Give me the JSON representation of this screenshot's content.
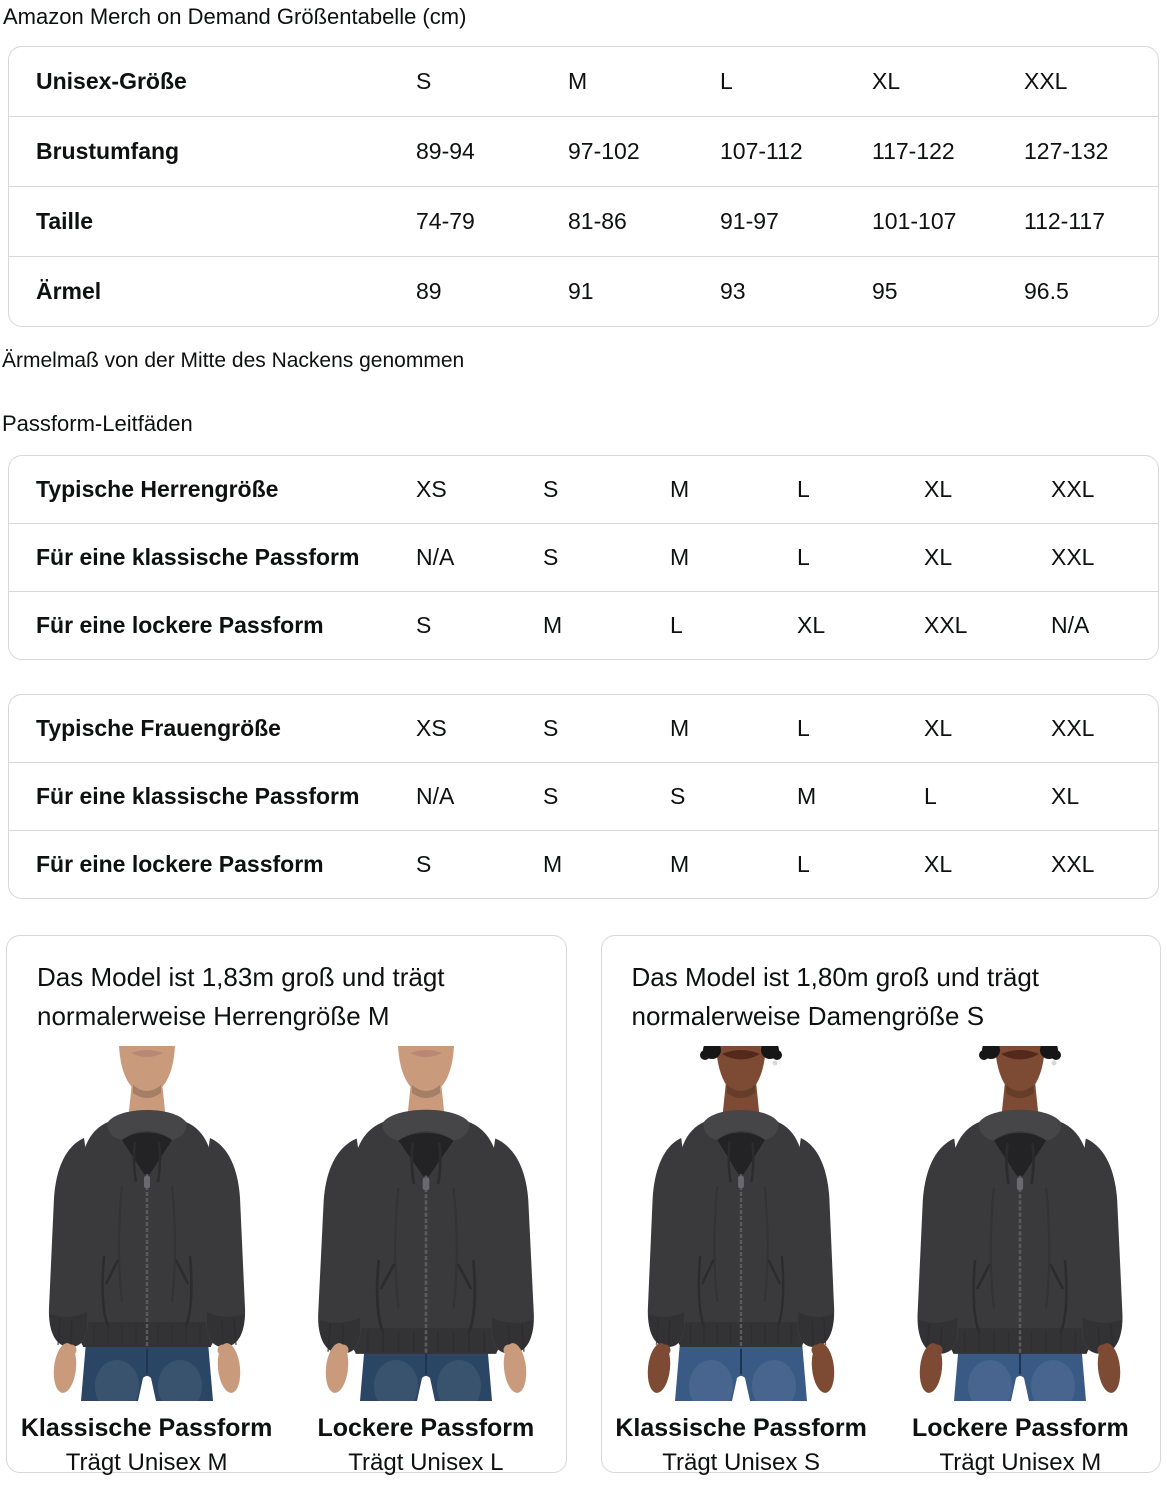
{
  "page": {
    "title": "Amazon Merch on Demand Größentabelle (cm)",
    "note": "Ärmelmaß von der Mitte des Nackens genommen",
    "fit_guides_title": "Passform-Leitfäden"
  },
  "size_table": {
    "rows": [
      {
        "label": "Unisex-Größe",
        "values": [
          "S",
          "M",
          "L",
          "XL",
          "XXL"
        ]
      },
      {
        "label": "Brustumfang",
        "values": [
          "89-94",
          "97-102",
          "107-112",
          "117-122",
          "127-132"
        ]
      },
      {
        "label": "Taille",
        "values": [
          "74-79",
          "81-86",
          "91-97",
          "101-107",
          "112-117"
        ]
      },
      {
        "label": "Ärmel",
        "values": [
          "89",
          "91",
          "93",
          "95",
          "96.5"
        ]
      }
    ]
  },
  "fit_tables": [
    {
      "rows": [
        {
          "label": "Typische Herrengröße",
          "values": [
            "XS",
            "S",
            "M",
            "L",
            "XL",
            "XXL"
          ]
        },
        {
          "label": "Für eine klassische Passform",
          "values": [
            "N/A",
            "S",
            "M",
            "L",
            "XL",
            "XXL"
          ]
        },
        {
          "label": "Für eine lockere Passform",
          "values": [
            "S",
            "M",
            "L",
            "XL",
            "XXL",
            "N/A"
          ]
        }
      ]
    },
    {
      "rows": [
        {
          "label": "Typische Frauengröße",
          "values": [
            "XS",
            "S",
            "M",
            "L",
            "XL",
            "XXL"
          ]
        },
        {
          "label": "Für eine klassische Passform",
          "values": [
            "N/A",
            "S",
            "S",
            "M",
            "L",
            "XL"
          ]
        },
        {
          "label": "Für eine lockere Passform",
          "values": [
            "S",
            "M",
            "M",
            "L",
            "XL",
            "XXL"
          ]
        }
      ]
    }
  ],
  "model_cards": [
    {
      "description": "Das Model ist 1,83m groß und trägt normalerweise Herrengröße M",
      "figures": [
        {
          "photo": "male-model-classic-fit-photo",
          "variant": "male",
          "fit": "classic",
          "fit_label": "Klassische Passform",
          "size_label": "Trägt Unisex M"
        },
        {
          "photo": "male-model-loose-fit-photo",
          "variant": "male",
          "fit": "loose",
          "fit_label": "Lockere Passform",
          "size_label": "Trägt Unisex L"
        }
      ]
    },
    {
      "description": "Das Model ist 1,80m groß und trägt normalerweise Damengröße S",
      "figures": [
        {
          "photo": "female-model-classic-fit-photo",
          "variant": "female",
          "fit": "classic",
          "fit_label": "Klassische Passform",
          "size_label": "Trägt Unisex S"
        },
        {
          "photo": "female-model-loose-fit-photo",
          "variant": "female",
          "fit": "loose",
          "fit_label": "Lockere Passform",
          "size_label": "Trägt Unisex M"
        }
      ]
    }
  ],
  "colors": {
    "text": "#0f1111",
    "table_border": "#d5d9d9",
    "hoodie": "#3a3a3c",
    "hoodie_dark": "#2c2c2e",
    "hoodie_light": "#464648",
    "hood_interior": "#232325",
    "zipper": "#5a5a5d",
    "male_skin": "#c99b7c",
    "male_lip": "#b98773",
    "male_jeans": "#2b4665",
    "female_skin": "#7d4b33",
    "female_lip": "#55281c",
    "female_hair": "#161616",
    "female_jeans": "#3a5a86",
    "jeans_dark": "#1f3450"
  }
}
